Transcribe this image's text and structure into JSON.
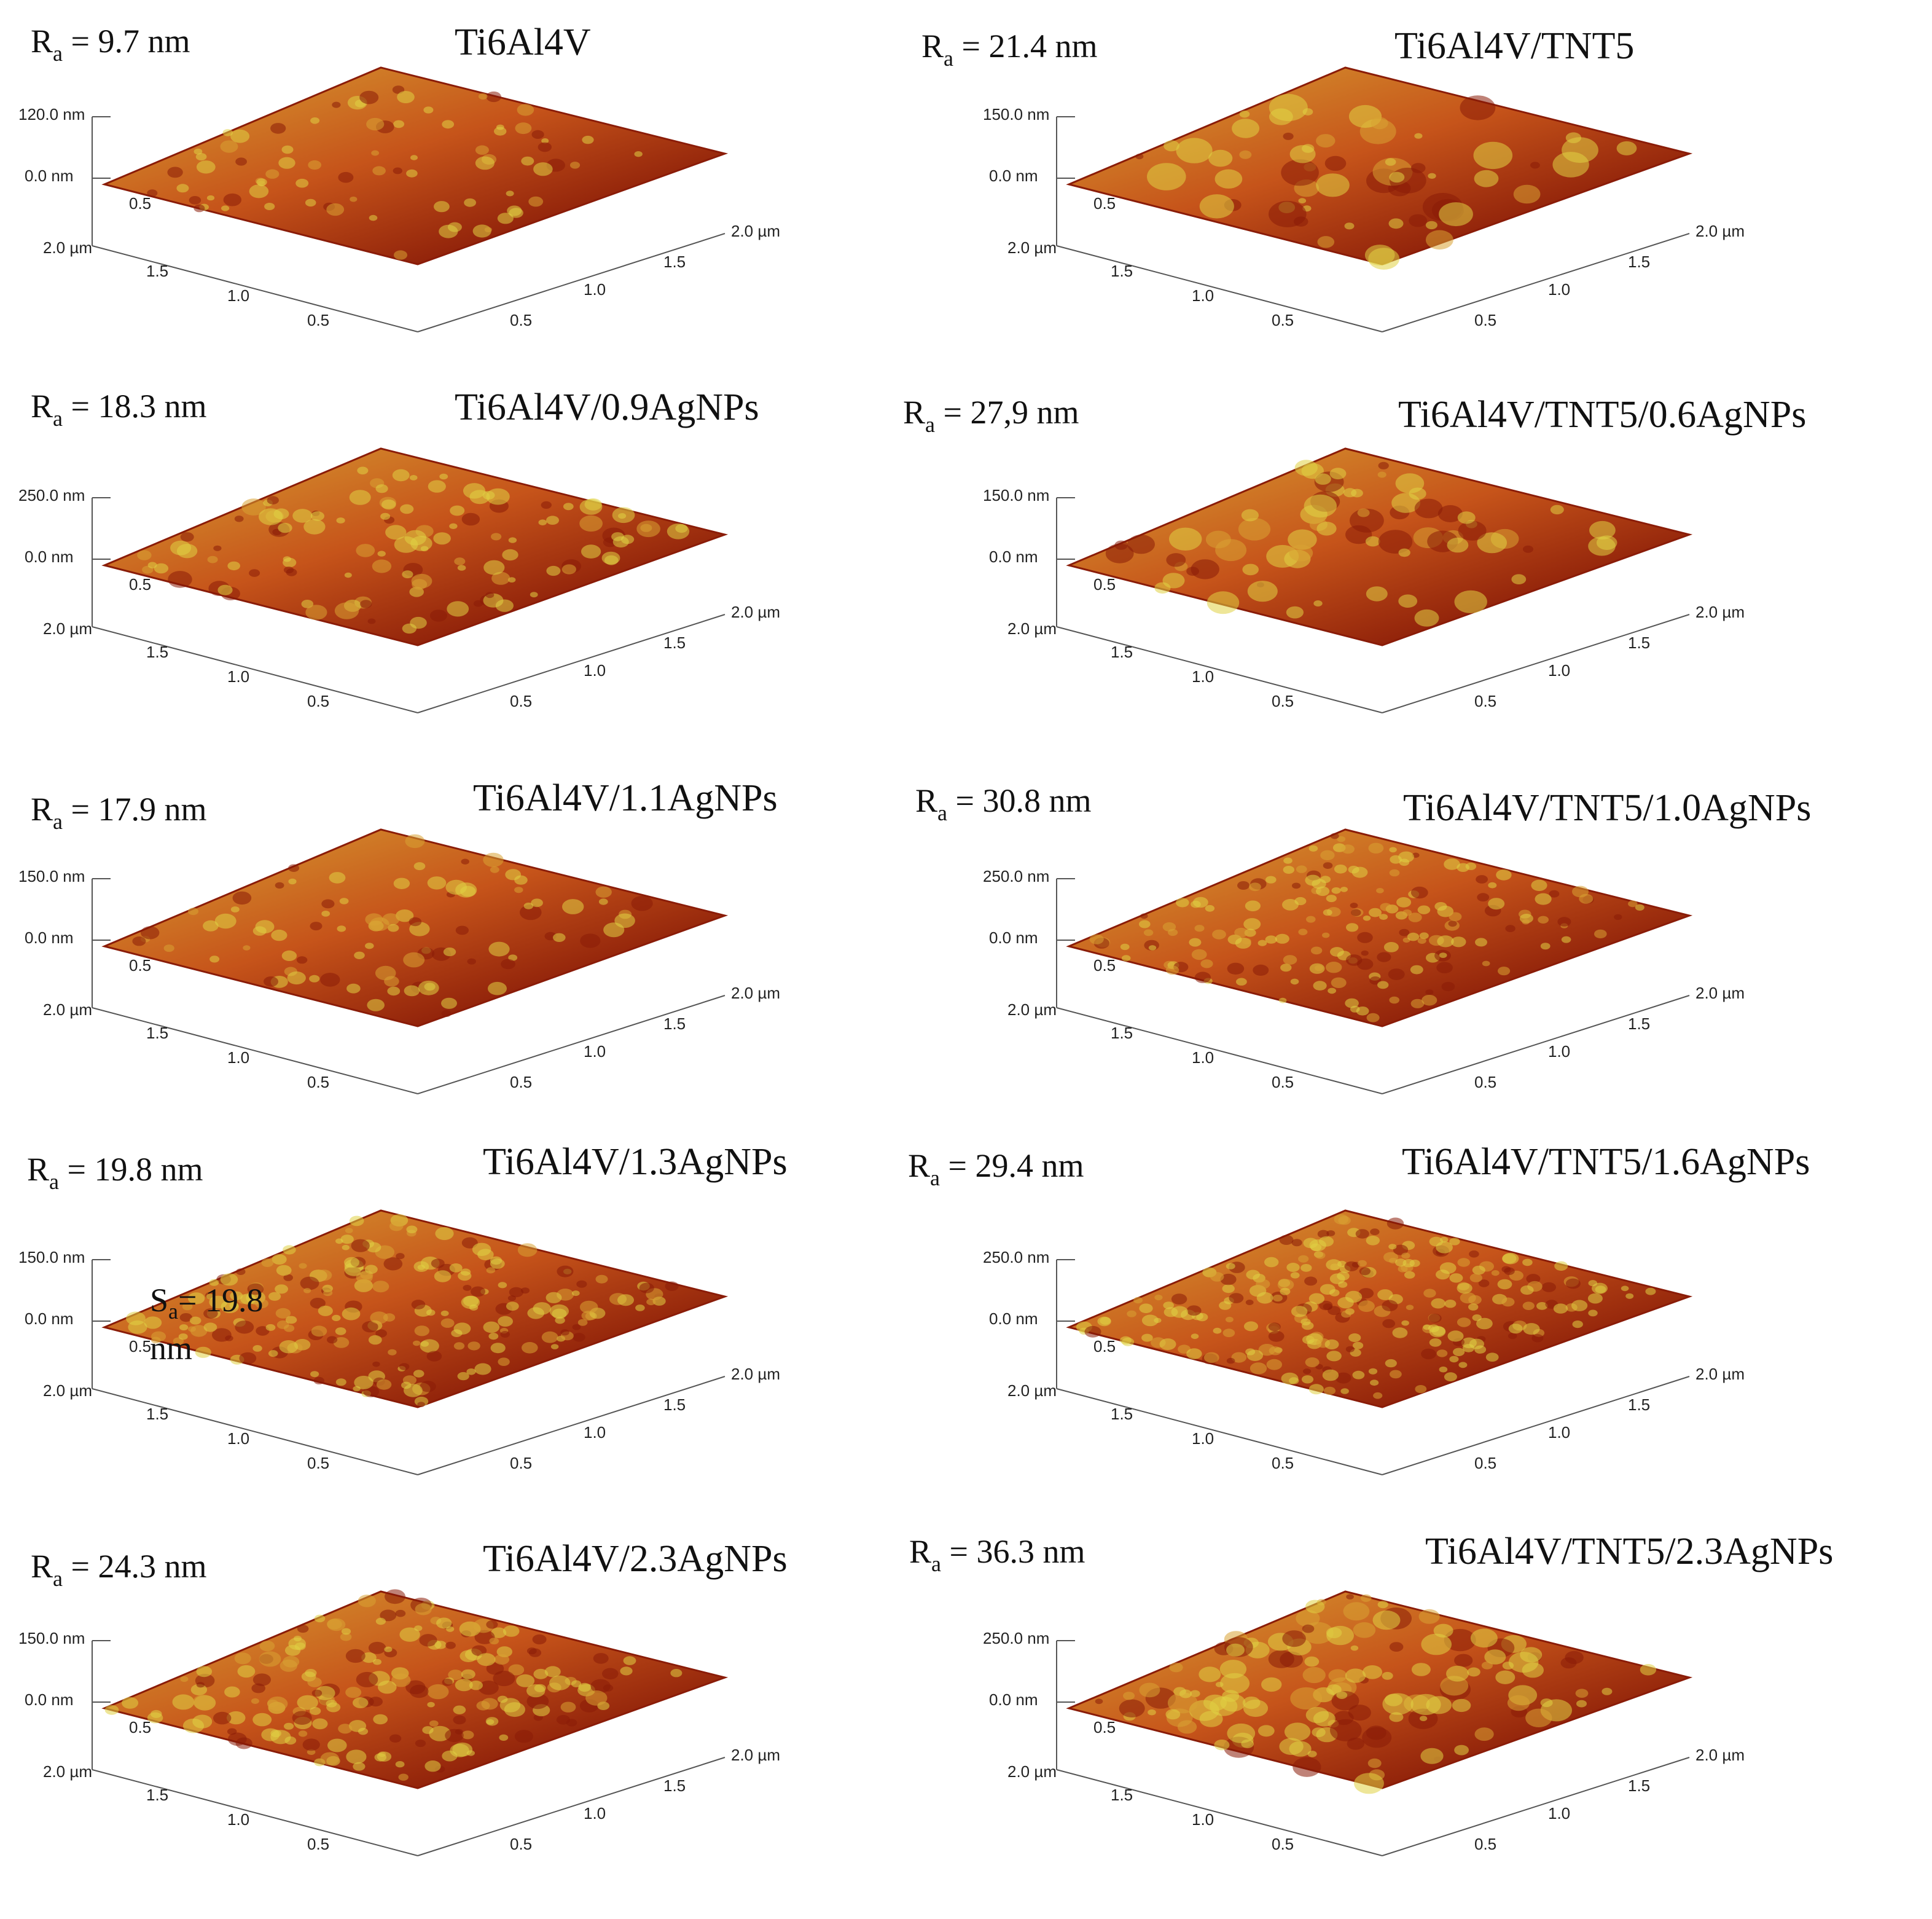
{
  "panels": [
    {
      "id": "p1",
      "title": "Ti6Al4V",
      "ra_value": "= 9.7 nm",
      "z_top": "120.0 nm",
      "z_zero": "0.0 nm",
      "x": [
        20,
        0
      ],
      "y": [
        0,
        0
      ]
    },
    {
      "id": "p2",
      "title": "Ti6Al4V/TNT5",
      "ra_value": "= 21.4 nm",
      "z_top": "150.0 nm",
      "z_zero": "0.0 nm"
    },
    {
      "id": "p3",
      "title": "Ti6Al4V/0.9AgNPs",
      "ra_value": "= 18.3 nm",
      "z_top": "250.0 nm",
      "z_zero": "0.0 nm"
    },
    {
      "id": "p4",
      "title": "Ti6Al4V/TNT5/0.6AgNPs",
      "ra_value": "= 27,9 nm",
      "z_top": "150.0 nm",
      "z_zero": "0.0 nm"
    },
    {
      "id": "p5",
      "title": "Ti6Al4V/1.1AgNPs",
      "ra_value": "= 17.9 nm",
      "z_top": "150.0 nm",
      "z_zero": "0.0 nm"
    },
    {
      "id": "p6",
      "title": "Ti6Al4V/TNT5/1.0AgNPs",
      "ra_value": "= 30.8 nm",
      "z_top": "250.0 nm",
      "z_zero": "0.0 nm"
    },
    {
      "id": "p7",
      "title": "Ti6Al4V/1.3AgNPs",
      "ra_value": "= 19.8 nm",
      "z_top": "150.0 nm",
      "z_zero": "0.0 nm"
    },
    {
      "id": "p8",
      "title": "Ti6Al4V/TNT5/1.6AgNPs",
      "ra_value": "= 29.4 nm",
      "z_top": "250.0 nm",
      "z_zero": "0.0 nm"
    },
    {
      "id": "p9",
      "title": "Ti6Al4V/2.3AgNPs",
      "ra_value": "= 24.3 nm",
      "z_top": "150.0 nm",
      "z_zero": "0.0 nm"
    },
    {
      "id": "p10",
      "title": "Ti6Al4V/TNT5/2.3AgNPs",
      "ra_value": "= 36.3 nm",
      "z_top": "250.0 nm",
      "z_zero": "0.0 nm"
    }
  ],
  "ra_symbol": "R",
  "ra_subscript": "a",
  "axis_labels": {
    "left_2": "2.0 µm",
    "left_15": "1.5",
    "left_10": "1.0",
    "left_05": "0.5",
    "right_2": "2.0 µm",
    "right_15": "1.5",
    "right_10": "1.0",
    "right_05": "0.5",
    "back_05": "0.5"
  },
  "stray_label": {
    "symbol": "S",
    "subscript": "a",
    "value": "= 19.8",
    "unit": "nm"
  },
  "colors": {
    "dark": "#8a1c08",
    "mid": "#c6541a",
    "light": "#d9a233",
    "yellow": "#e0d244",
    "axis": "#555555"
  }
}
